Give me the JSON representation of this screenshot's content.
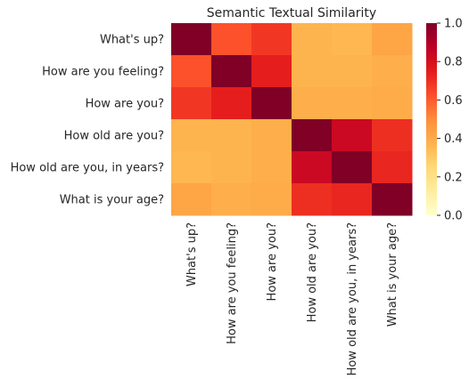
{
  "chart_data": {
    "type": "heatmap",
    "title": "Semantic Textual Similarity",
    "xlabel": "",
    "ylabel": "",
    "row_labels": [
      "What's up?",
      "How are you feeling?",
      "How are you?",
      "How old are you?",
      "How old are you, in years?",
      "What is your age?"
    ],
    "col_labels": [
      "What's up?",
      "How are you feeling?",
      "How are you?",
      "How old are you?",
      "How old are you, in years?",
      "What is your age?"
    ],
    "values": [
      [
        1.0,
        0.62,
        0.68,
        0.37,
        0.36,
        0.42
      ],
      [
        0.62,
        1.0,
        0.74,
        0.37,
        0.37,
        0.39
      ],
      [
        0.68,
        0.74,
        1.0,
        0.39,
        0.39,
        0.4
      ],
      [
        0.37,
        0.37,
        0.39,
        1.0,
        0.83,
        0.7
      ],
      [
        0.36,
        0.37,
        0.39,
        0.83,
        1.0,
        0.72
      ],
      [
        0.42,
        0.39,
        0.4,
        0.7,
        0.72,
        1.0
      ]
    ],
    "colormap": "YlOrRd",
    "vmin": 0.0,
    "vmax": 1.0,
    "colorbar_ticks": [
      "0.0",
      "0.2",
      "0.4",
      "0.6",
      "0.8",
      "1.0"
    ],
    "colorbar_tick_values": [
      0.0,
      0.2,
      0.4,
      0.6,
      0.8,
      1.0
    ],
    "colors": [
      "#ffffcc",
      "#ffeda0",
      "#fed976",
      "#feb24c",
      "#fd8d3c",
      "#fc4e2a",
      "#e31a1c",
      "#bd0026",
      "#800026"
    ]
  }
}
